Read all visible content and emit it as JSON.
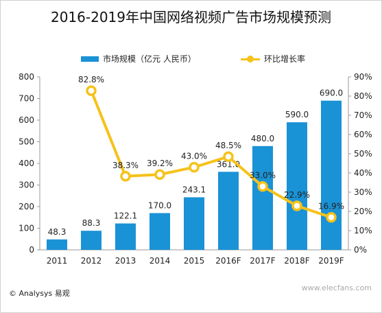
{
  "title": "2016-2019年中国网络视频广告市场规模预测",
  "footer": "© Analysys 易观",
  "watermark": "www.elecfans.com",
  "colors": {
    "bar": "#1a92d6",
    "line": "#f6c21a",
    "axis": "#9a9a9a",
    "text": "#222222"
  },
  "chart_data": {
    "type": "bar",
    "categories": [
      "2011",
      "2012",
      "2013",
      "2014",
      "2015",
      "2016F",
      "2017F",
      "2018F",
      "2019F"
    ],
    "series": [
      {
        "name": "市场规模（亿元 人民币）",
        "type": "bar",
        "axis": "left",
        "values": [
          48.3,
          88.3,
          122.1,
          170.0,
          243.1,
          361.0,
          480.0,
          590.0,
          690.0
        ],
        "labels": [
          "48.3",
          "88.3",
          "122.1",
          "170.0",
          "243.1",
          "361.0",
          "480.0",
          "590.0",
          "690.0"
        ]
      },
      {
        "name": "环比增长率",
        "type": "line",
        "axis": "right",
        "values": [
          null,
          82.8,
          38.3,
          39.2,
          43.0,
          48.5,
          33.0,
          22.9,
          16.9
        ],
        "labels": [
          "",
          "82.8%",
          "38.3%",
          "39.2%",
          "43.0%",
          "48.5%",
          "33.0%",
          "22.9%",
          "16.9%"
        ]
      }
    ],
    "ylim_left": [
      0,
      800
    ],
    "yticks_left": [
      "0",
      "100",
      "200",
      "300",
      "400",
      "500",
      "600",
      "700",
      "800"
    ],
    "ylim_right": [
      0,
      90
    ],
    "yticks_right": [
      "0%",
      "10%",
      "20%",
      "30%",
      "40%",
      "50%",
      "60%",
      "70%",
      "80%",
      "90%"
    ],
    "legend_position": "top",
    "grid": false
  }
}
